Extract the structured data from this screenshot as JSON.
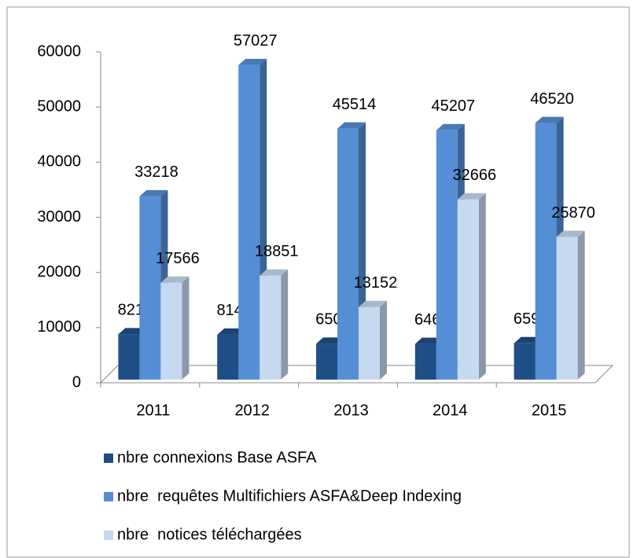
{
  "chart_data": {
    "type": "bar3d",
    "categories": [
      "2011",
      "2012",
      "2013",
      "2014",
      "2015"
    ],
    "series": [
      {
        "name": "nbre connexions Base ASFA",
        "color": "#1f4e87",
        "values": [
          8217,
          8147,
          6502,
          6465,
          6595
        ]
      },
      {
        "name": "nbre  requêtes Multifichiers ASFA&Deep Indexing",
        "color": "#558ed5",
        "values": [
          33218,
          57027,
          45514,
          45207,
          46520
        ]
      },
      {
        "name": "nbre  notices téléchargées",
        "color": "#c6d9f1",
        "values": [
          17566,
          18851,
          13152,
          32666,
          25870
        ]
      }
    ],
    "ylim": [
      0,
      60000
    ],
    "yticks": [
      0,
      10000,
      20000,
      30000,
      40000,
      50000,
      60000
    ],
    "grid": false,
    "legend": "bottom"
  }
}
